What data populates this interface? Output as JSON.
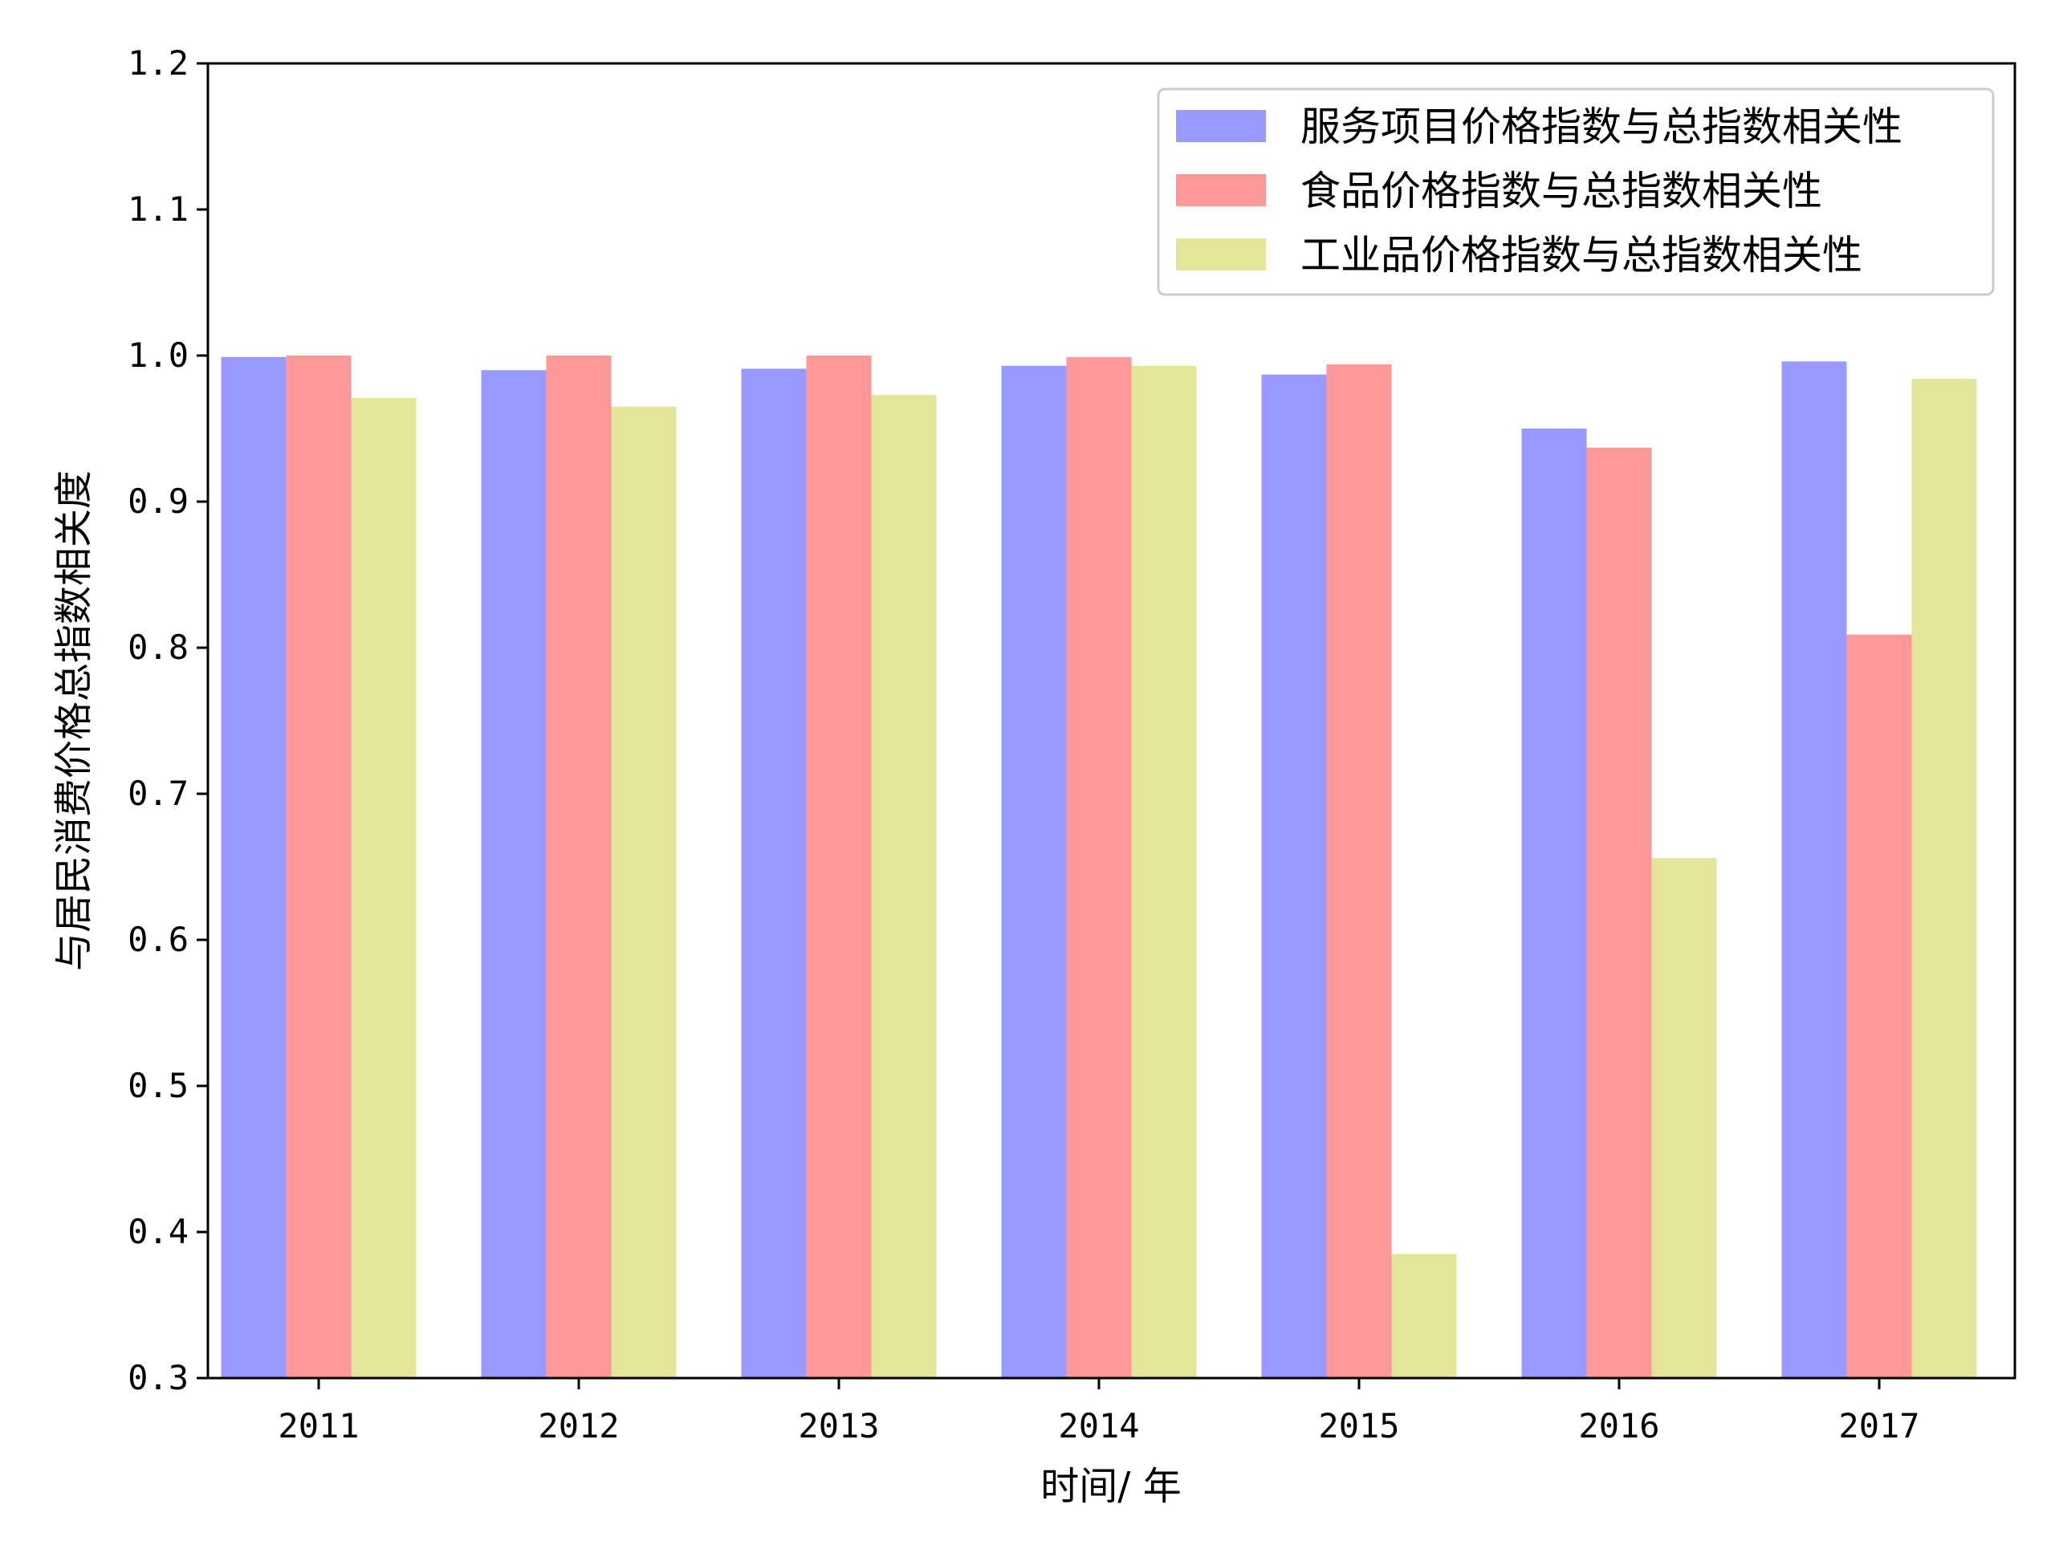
{
  "chart_data": {
    "type": "bar",
    "title": "",
    "xlabel": "时间/ 年",
    "ylabel": "与居民消费价格总指数相关度",
    "categories": [
      "2011",
      "2012",
      "2013",
      "2014",
      "2015",
      "2016",
      "2017"
    ],
    "ylim": [
      0.3,
      1.2
    ],
    "yticks": [
      0.3,
      0.4,
      0.5,
      0.6,
      0.7,
      0.8,
      0.9,
      1.0,
      1.1,
      1.2
    ],
    "ytick_labels": [
      "0.3",
      "0.4",
      "0.5",
      "0.6",
      "0.7",
      "0.8",
      "0.9",
      "1.0",
      "1.1",
      "1.2"
    ],
    "grid": false,
    "legend_position": "top-right",
    "series": [
      {
        "name": "服务项目价格指数与总指数相关性",
        "color": "#9999ff",
        "values": [
          0.999,
          0.99,
          0.991,
          0.993,
          0.987,
          0.95,
          0.996
        ]
      },
      {
        "name": "食品价格指数与总指数相关性",
        "color": "#ff9999",
        "values": [
          1.0,
          1.0,
          1.0,
          0.999,
          0.994,
          0.937,
          0.809
        ]
      },
      {
        "name": "工业品价格指数与总指数相关性",
        "color": "#e5e59a",
        "values": [
          0.971,
          0.965,
          0.973,
          0.993,
          0.385,
          0.656,
          0.984
        ]
      }
    ]
  }
}
